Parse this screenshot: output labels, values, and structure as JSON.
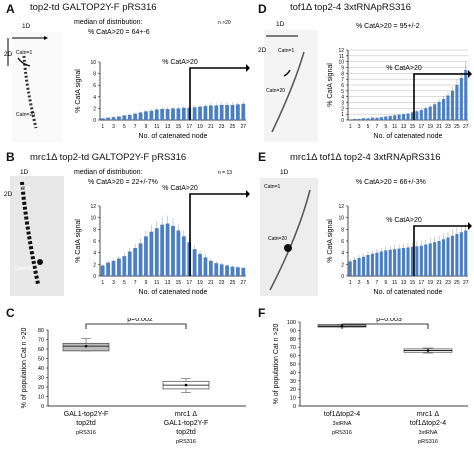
{
  "panels": {
    "A": {
      "letter": "A",
      "title": "top2-td GALTOP2Y-F pRS316",
      "median_line": "median of distribution:",
      "n": "n >20",
      "cata_line": "% CatA>20 = 64+-6",
      "arrow_label": "% CatA>20",
      "gel": {
        "dim_1d": "1D",
        "dim_2d": "2D",
        "catn1": "Catn=1",
        "catn20": "Catn=20"
      }
    },
    "B": {
      "letter": "B",
      "title": "mrc1Δ top2-td GALTOP2Y-F pRS316",
      "median_line": "median of distribution:",
      "n": "n = 13",
      "cata_line": "% CatA>20 = 22+/-7%",
      "arrow_label": "% CatA>20",
      "gel": {
        "dim_1d": "1D",
        "dim_2d": "2D",
        "catn1": "Catn=1",
        "catn20": "Catn=20"
      }
    },
    "C": {
      "letter": "C"
    },
    "D": {
      "letter": "D",
      "title": "tof1Δ top2-4 3xtRNApRS316",
      "cata_line": "% CatA>20 = 95+/-2",
      "arrow_label": "% CatA>20",
      "gel": {
        "dim_1d": "1D",
        "dim_2d": "2D",
        "catn1": "Catn=1",
        "catn20": "Catn=20"
      }
    },
    "E": {
      "letter": "E",
      "title": "mrc1Δ tof1Δ top2-4 3xtRNApRS316",
      "cata_line": "% CatA>20 = 66+/-3%",
      "arrow_label": "% CatA>20",
      "gel": {
        "dim_1d": "1D",
        "catn1": "Catn=1",
        "catn20": "Catn=20"
      }
    },
    "F": {
      "letter": "F"
    }
  },
  "chart_data": [
    {
      "id": "A",
      "type": "bar",
      "categories": [
        1,
        2,
        3,
        4,
        5,
        6,
        7,
        8,
        9,
        10,
        11,
        12,
        13,
        14,
        15,
        16,
        17,
        18,
        19,
        20,
        21,
        22,
        23,
        24,
        25,
        26,
        27
      ],
      "values": [
        0.3,
        0.4,
        0.5,
        0.6,
        0.8,
        0.9,
        1.1,
        1.3,
        1.5,
        1.6,
        1.8,
        1.9,
        1.9,
        2.0,
        2.0,
        2.1,
        2.1,
        2.2,
        2.3,
        2.4,
        2.5,
        2.5,
        2.6,
        2.6,
        2.6,
        2.7,
        2.8
      ],
      "xlabel": "No. of catenated node",
      "ylabel": "% CatA signal",
      "ylim": [
        0,
        10
      ],
      "yticks": [
        0,
        2,
        4,
        6,
        8,
        10
      ],
      "xticks": [
        1,
        3,
        5,
        7,
        9,
        11,
        13,
        15,
        17,
        19,
        21,
        23,
        25,
        27
      ],
      "bar_color": "#4a7fc6"
    },
    {
      "id": "B",
      "type": "bar",
      "categories": [
        1,
        2,
        3,
        4,
        5,
        6,
        7,
        8,
        9,
        10,
        11,
        12,
        13,
        14,
        15,
        16,
        17,
        18,
        19,
        20,
        21,
        22,
        23,
        24,
        25,
        26,
        27
      ],
      "values": [
        1.8,
        2.3,
        2.6,
        3.0,
        3.4,
        4.2,
        4.8,
        5.6,
        6.8,
        7.6,
        8.2,
        8.8,
        9.0,
        8.6,
        7.8,
        6.8,
        5.8,
        4.6,
        3.8,
        3.2,
        2.6,
        2.2,
        2.0,
        1.8,
        1.6,
        1.5,
        1.4
      ],
      "xlabel": "No. of catenated node",
      "ylabel": "% CatA signal",
      "ylim": [
        0,
        12
      ],
      "yticks": [
        0,
        2,
        4,
        6,
        8,
        10,
        12
      ],
      "xticks": [
        1,
        3,
        5,
        7,
        9,
        11,
        13,
        15,
        17,
        19,
        21,
        23,
        25,
        27
      ],
      "bar_color": "#4a7fc6"
    },
    {
      "id": "D",
      "type": "bar",
      "categories": [
        1,
        2,
        3,
        4,
        5,
        6,
        7,
        8,
        9,
        10,
        11,
        12,
        13,
        14,
        15,
        16,
        17,
        18,
        19,
        20,
        21,
        22,
        23,
        24,
        25,
        26,
        27
      ],
      "values": [
        0.1,
        0.2,
        0.2,
        0.3,
        0.3,
        0.4,
        0.4,
        0.5,
        0.6,
        0.7,
        0.8,
        0.9,
        1.0,
        1.1,
        1.3,
        1.5,
        1.7,
        2.0,
        2.3,
        2.7,
        3.1,
        3.6,
        4.2,
        5.0,
        6.0,
        7.2,
        8.6
      ],
      "xlabel": "No. of catenated node",
      "ylabel": "% CatA signal",
      "ylim": [
        0,
        12
      ],
      "yticks": [
        0,
        1,
        2,
        3,
        4,
        5,
        6,
        7,
        8,
        9,
        10,
        11,
        12
      ],
      "xticks": [
        1,
        3,
        5,
        7,
        9,
        11,
        13,
        15,
        17,
        19,
        21,
        23,
        25,
        27
      ],
      "bar_color": "#4a7fc6"
    },
    {
      "id": "E",
      "type": "bar",
      "categories": [
        1,
        2,
        3,
        4,
        5,
        6,
        7,
        8,
        9,
        10,
        11,
        12,
        13,
        14,
        15,
        16,
        17,
        18,
        19,
        20,
        21,
        22,
        23,
        24,
        25,
        26,
        27
      ],
      "values": [
        2.5,
        2.8,
        3.1,
        3.3,
        3.6,
        3.8,
        4.0,
        4.2,
        4.4,
        4.5,
        4.6,
        4.7,
        4.8,
        4.9,
        5.0,
        5.1,
        5.2,
        5.4,
        5.6,
        5.8,
        6.0,
        6.3,
        6.6,
        6.9,
        7.2,
        7.5,
        7.8
      ],
      "xlabel": "No. of catenated node",
      "ylabel": "% CatA signal",
      "ylim": [
        0,
        12
      ],
      "yticks": [
        0,
        2,
        4,
        6,
        8,
        10,
        12
      ],
      "xticks": [
        1,
        3,
        5,
        7,
        9,
        11,
        13,
        15,
        17,
        19,
        21,
        23,
        25,
        27
      ],
      "bar_color": "#4a7fc6"
    },
    {
      "id": "C",
      "type": "box",
      "ylabel": "% of population Cat n >20",
      "ylim": [
        0,
        80
      ],
      "yticks": [
        0,
        10,
        20,
        30,
        40,
        50,
        60,
        70,
        80
      ],
      "boxes": [
        {
          "label": [
            "GAL1-top2Y-F",
            "top2td",
            "pRS316"
          ],
          "q1": 58,
          "median": 63,
          "q3": 66,
          "min": 58,
          "max": 71,
          "mean": 63
        },
        {
          "label": [
            "mrc1 Δ",
            "GAL1-top2Y-F",
            "top2td",
            "pRS316"
          ],
          "q1": 18,
          "median": 22,
          "q3": 26,
          "min": 14,
          "max": 29,
          "mean": 22
        }
      ],
      "significance": "p=0.002"
    },
    {
      "id": "F",
      "type": "box",
      "ylabel": "% of population Cat n >20",
      "ylim": [
        0,
        100
      ],
      "yticks": [
        0,
        10,
        20,
        30,
        40,
        50,
        60,
        70,
        80,
        90,
        100
      ],
      "boxes": [
        {
          "label": [
            "tof1Δtop2-4",
            "3xtRNA",
            "pRS316"
          ],
          "q1": 94,
          "median": 95,
          "q3": 97,
          "min": 94,
          "max": 97,
          "mean": 95
        },
        {
          "label": [
            "mrc1 Δ",
            "tof1Δtop2-4",
            "3xtRNA",
            "pRS316"
          ],
          "q1": 64,
          "median": 66,
          "q3": 68,
          "min": 63,
          "max": 69,
          "mean": 66
        }
      ],
      "significance": "p=0.003"
    }
  ],
  "colors": {
    "bar": "#4a7fc6",
    "box_fill": "#bdbdbd",
    "box_fill_light": "#ffffff",
    "text": "#111111"
  }
}
